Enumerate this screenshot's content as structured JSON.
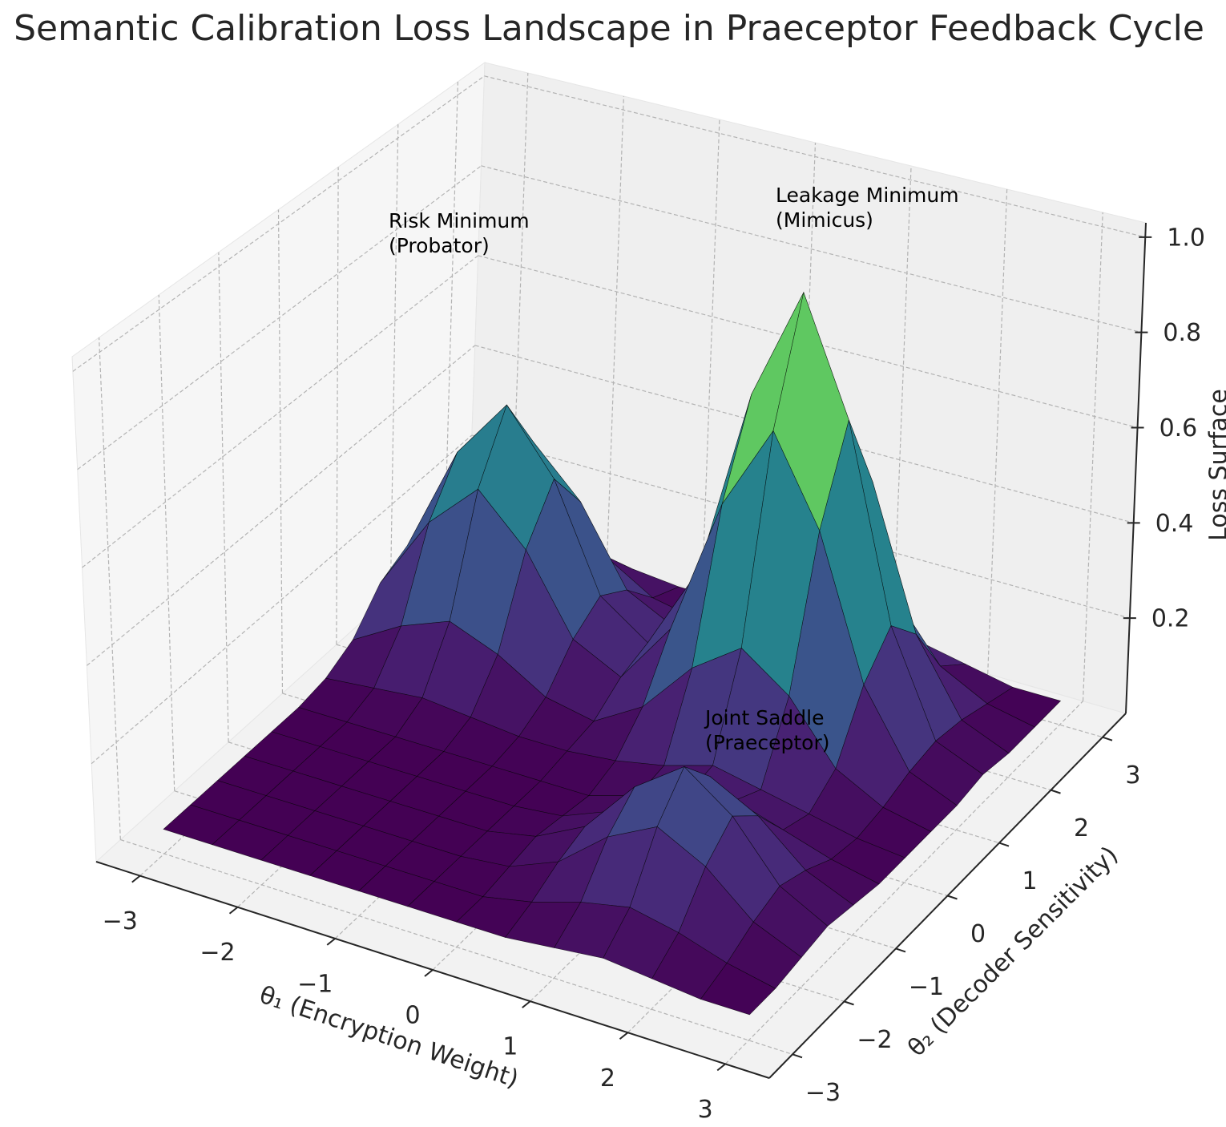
{
  "chart_data": {
    "type": "surface",
    "title": "Semantic Calibration Loss Landscape in Praeceptor Feedback Cycle",
    "x_label": "θ₁ (Encryption Weight)",
    "y_label": "θ₂ (Decoder Sensitivity)",
    "z_label": "Loss Surface",
    "colormap": "viridis",
    "grid": true,
    "x": [
      -3,
      -2.5,
      -2,
      -1.5,
      -1,
      -0.5,
      0,
      0.5,
      1,
      1.5,
      2,
      2.5,
      3
    ],
    "y": [
      -3,
      -2.5,
      -2,
      -1.5,
      -1,
      -0.5,
      0,
      0.5,
      1,
      1.5,
      2,
      2.5,
      3
    ],
    "z": [
      [
        0.05,
        0.05,
        0.05,
        0.05,
        0.05,
        0.05,
        0.05,
        0.05,
        0.06,
        0.07,
        0.06,
        0.05,
        0.05
      ],
      [
        0.05,
        0.05,
        0.05,
        0.05,
        0.05,
        0.05,
        0.05,
        0.07,
        0.1,
        0.12,
        0.1,
        0.07,
        0.05
      ],
      [
        0.05,
        0.05,
        0.05,
        0.05,
        0.05,
        0.05,
        0.06,
        0.1,
        0.18,
        0.23,
        0.18,
        0.1,
        0.06
      ],
      [
        0.05,
        0.05,
        0.05,
        0.05,
        0.05,
        0.05,
        0.07,
        0.12,
        0.23,
        0.3,
        0.23,
        0.12,
        0.07
      ],
      [
        0.05,
        0.05,
        0.05,
        0.05,
        0.05,
        0.05,
        0.06,
        0.1,
        0.18,
        0.23,
        0.18,
        0.1,
        0.06
      ],
      [
        0.05,
        0.05,
        0.05,
        0.05,
        0.05,
        0.05,
        0.05,
        0.08,
        0.11,
        0.13,
        0.1,
        0.07,
        0.05
      ],
      [
        0.06,
        0.07,
        0.08,
        0.07,
        0.06,
        0.06,
        0.07,
        0.09,
        0.12,
        0.1,
        0.08,
        0.06,
        0.05
      ],
      [
        0.09,
        0.15,
        0.19,
        0.15,
        0.09,
        0.07,
        0.13,
        0.24,
        0.31,
        0.24,
        0.12,
        0.07,
        0.05
      ],
      [
        0.16,
        0.32,
        0.42,
        0.32,
        0.16,
        0.11,
        0.24,
        0.53,
        0.71,
        0.53,
        0.24,
        0.09,
        0.05
      ],
      [
        0.19,
        0.42,
        0.55,
        0.42,
        0.2,
        0.13,
        0.31,
        0.71,
        0.95,
        0.71,
        0.31,
        0.1,
        0.06
      ],
      [
        0.16,
        0.32,
        0.42,
        0.32,
        0.16,
        0.11,
        0.24,
        0.53,
        0.71,
        0.53,
        0.24,
        0.09,
        0.05
      ],
      [
        0.09,
        0.15,
        0.19,
        0.15,
        0.09,
        0.07,
        0.13,
        0.24,
        0.31,
        0.24,
        0.12,
        0.07,
        0.05
      ],
      [
        0.06,
        0.07,
        0.08,
        0.07,
        0.06,
        0.06,
        0.07,
        0.09,
        0.1,
        0.09,
        0.07,
        0.05,
        0.05
      ]
    ],
    "xlim": [
      -3.45,
      3.45
    ],
    "ylim": [
      -3.45,
      3.45
    ],
    "zlim": [
      0,
      1.03
    ],
    "xticks": [
      {
        "value": -3,
        "label": "−3"
      },
      {
        "value": -2,
        "label": "−2"
      },
      {
        "value": -1,
        "label": "−1"
      },
      0,
      1,
      2,
      3
    ],
    "yticks": [
      {
        "value": -3,
        "label": "−3"
      },
      {
        "value": -2,
        "label": "−2"
      },
      {
        "value": -1,
        "label": "−1"
      },
      0,
      1,
      2,
      3
    ],
    "zticks": [
      0.2,
      0.4,
      0.6,
      0.8,
      {
        "value": 1,
        "label": "1.0"
      }
    ],
    "annotations": [
      {
        "lines": [
          "Leakage Minimum",
          "(Mimicus)"
        ]
      },
      {
        "lines": [
          "Risk Minimum",
          "(Probator)"
        ]
      },
      {
        "lines": [
          "Joint Saddle",
          "(Praeceptor)"
        ]
      }
    ]
  }
}
